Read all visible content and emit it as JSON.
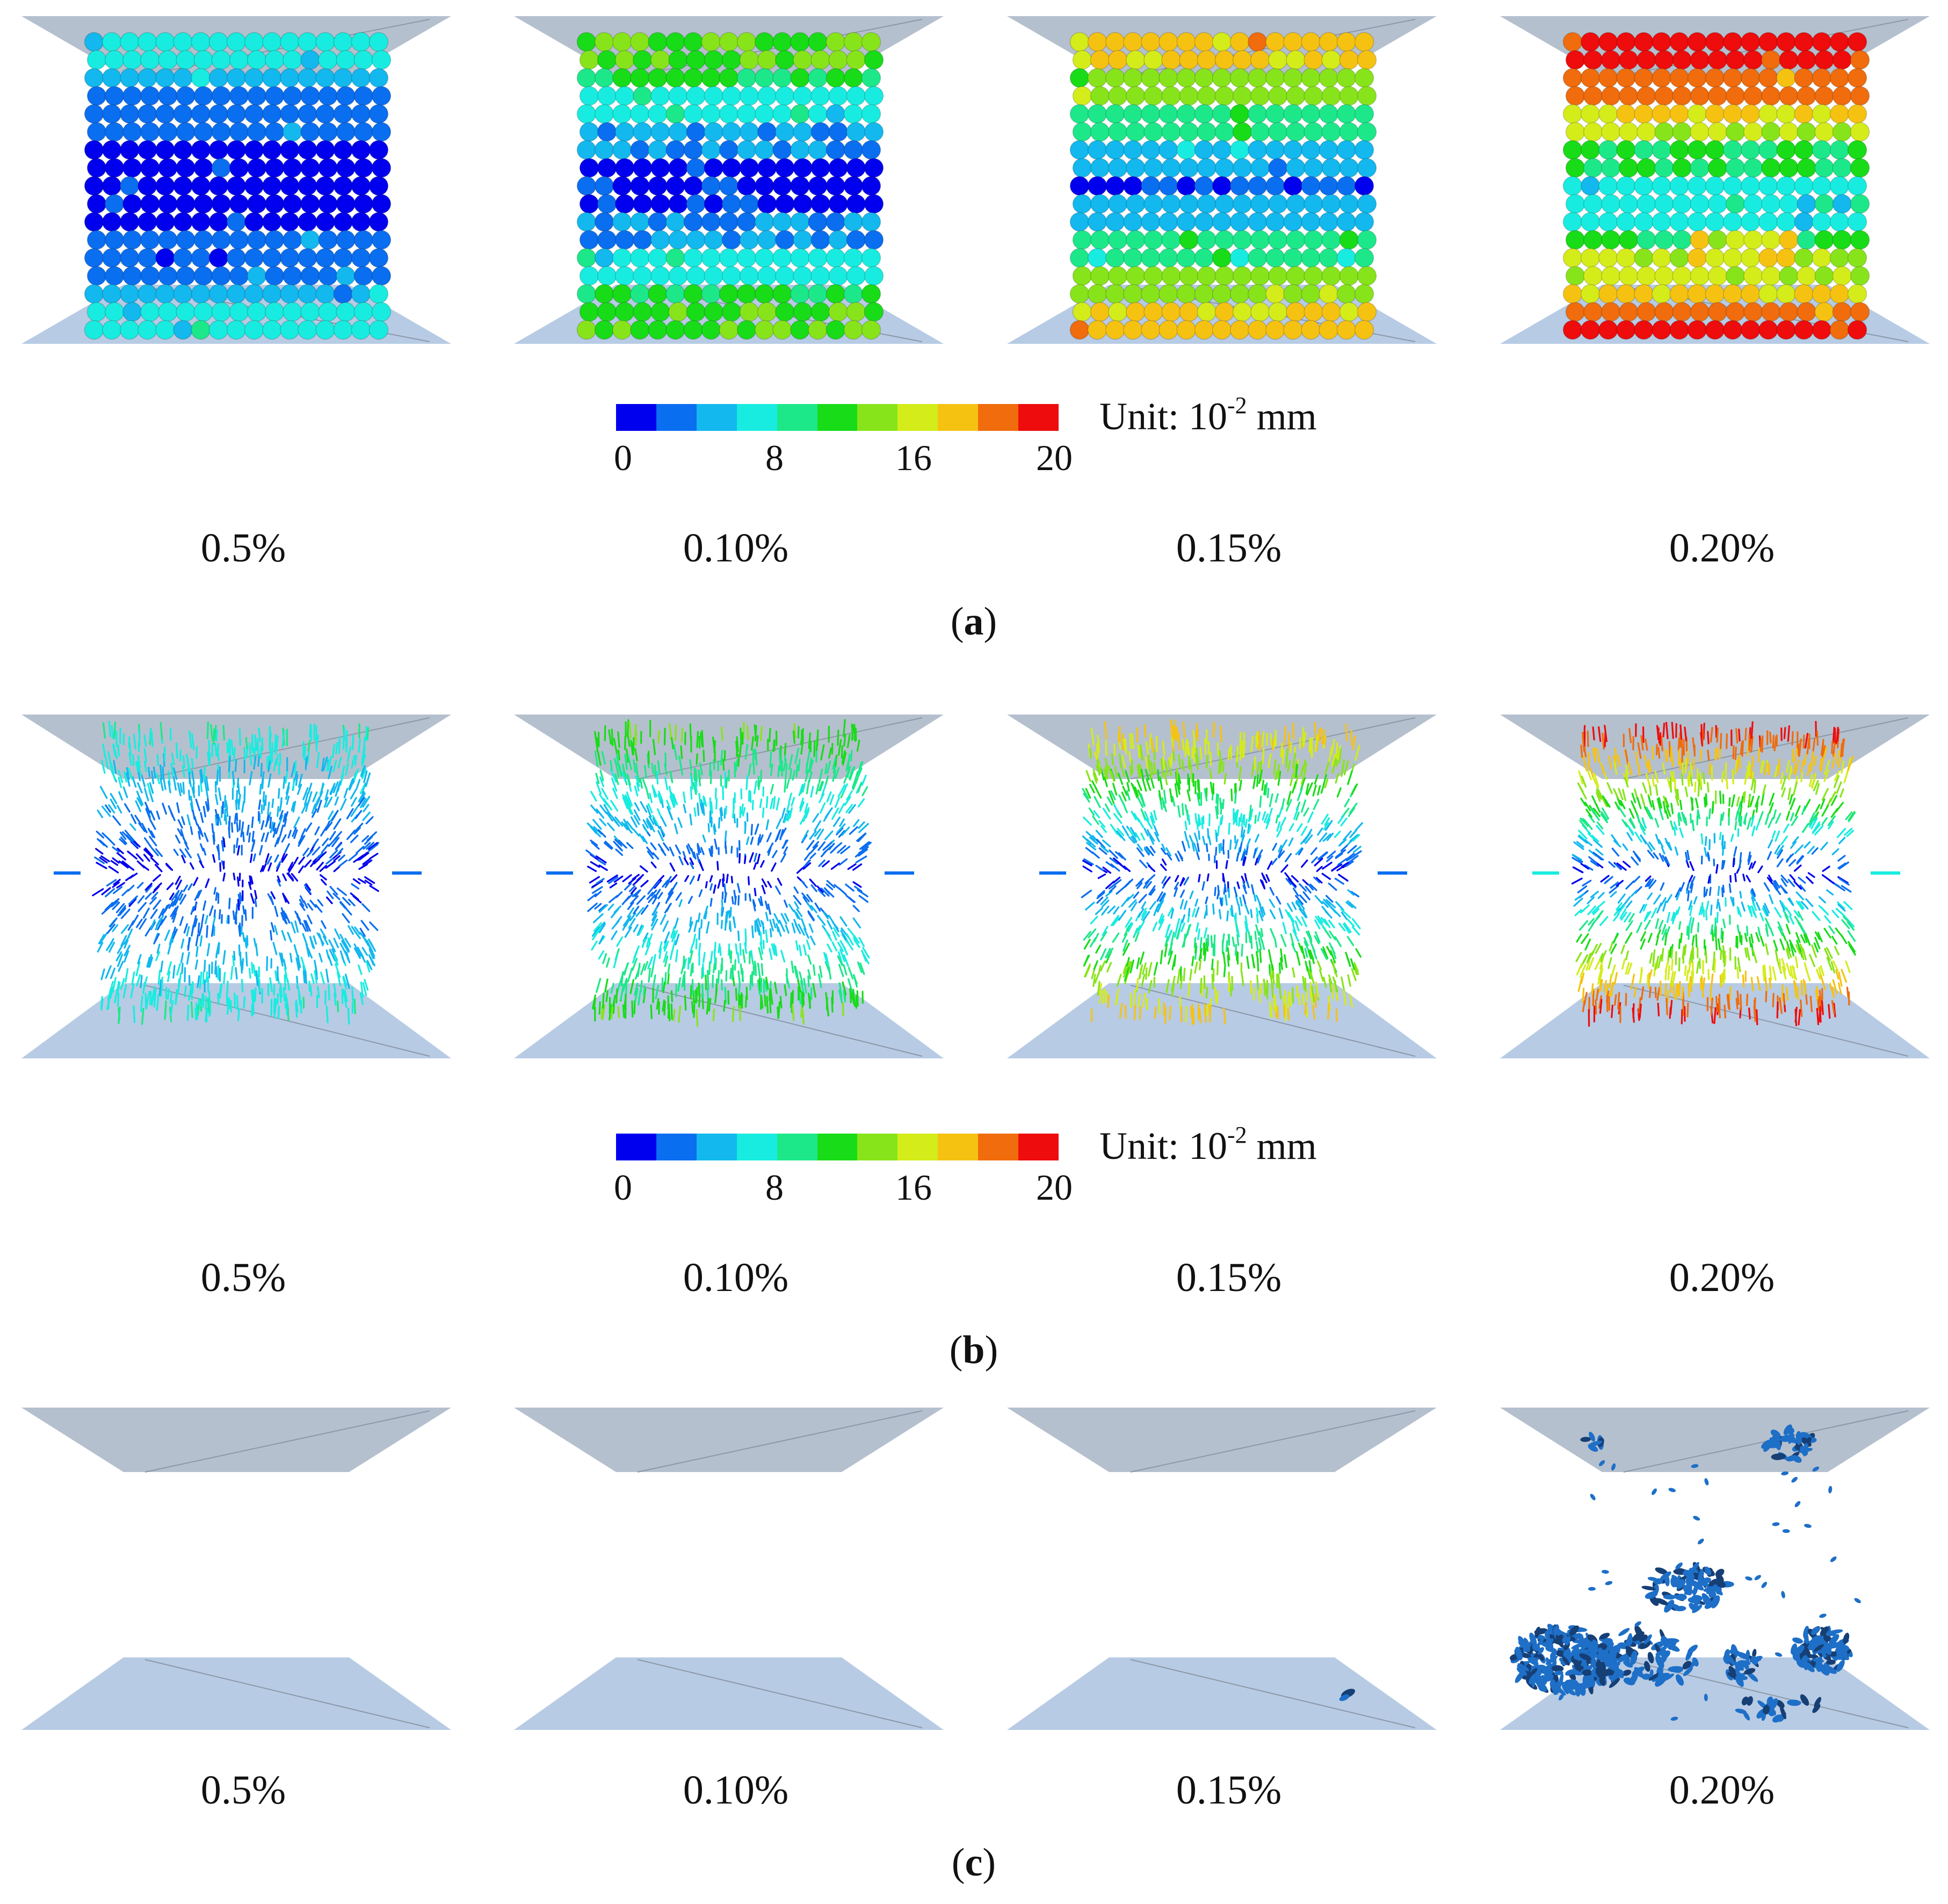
{
  "colorbar": {
    "ticks": [
      "0",
      "8",
      "16",
      "20"
    ],
    "unit_prefix": "Unit: 10",
    "unit_exponent": "-2",
    "unit_suffix": " mm",
    "colors": [
      "#0000ee",
      "#0a6ef0",
      "#12b8ee",
      "#18ece0",
      "#1ce88a",
      "#18dc18",
      "#88e41a",
      "#d4ec1a",
      "#f6c212",
      "#f06c0c",
      "#ee0c0c"
    ]
  },
  "sections": [
    {
      "caption_open": "(",
      "caption_letter": "a",
      "caption_close": ")",
      "strains": [
        "0.5%",
        "0.10%",
        "0.15%",
        "0.20%"
      ]
    },
    {
      "caption_open": "(",
      "caption_letter": "b",
      "caption_close": ")",
      "strains": [
        "0.5%",
        "0.10%",
        "0.15%",
        "0.20%"
      ]
    },
    {
      "caption_open": "(",
      "caption_letter": "c",
      "caption_close": ")",
      "strains": [
        "0.5%",
        "0.10%",
        "0.15%",
        "0.20%"
      ]
    }
  ],
  "colors": {
    "platen_top": "#b5c0ce",
    "platen_bottom": "#b7cbe4",
    "crack": "#1e6fc7",
    "crack_dark": "#163f75",
    "edge": "#8d98a8"
  }
}
